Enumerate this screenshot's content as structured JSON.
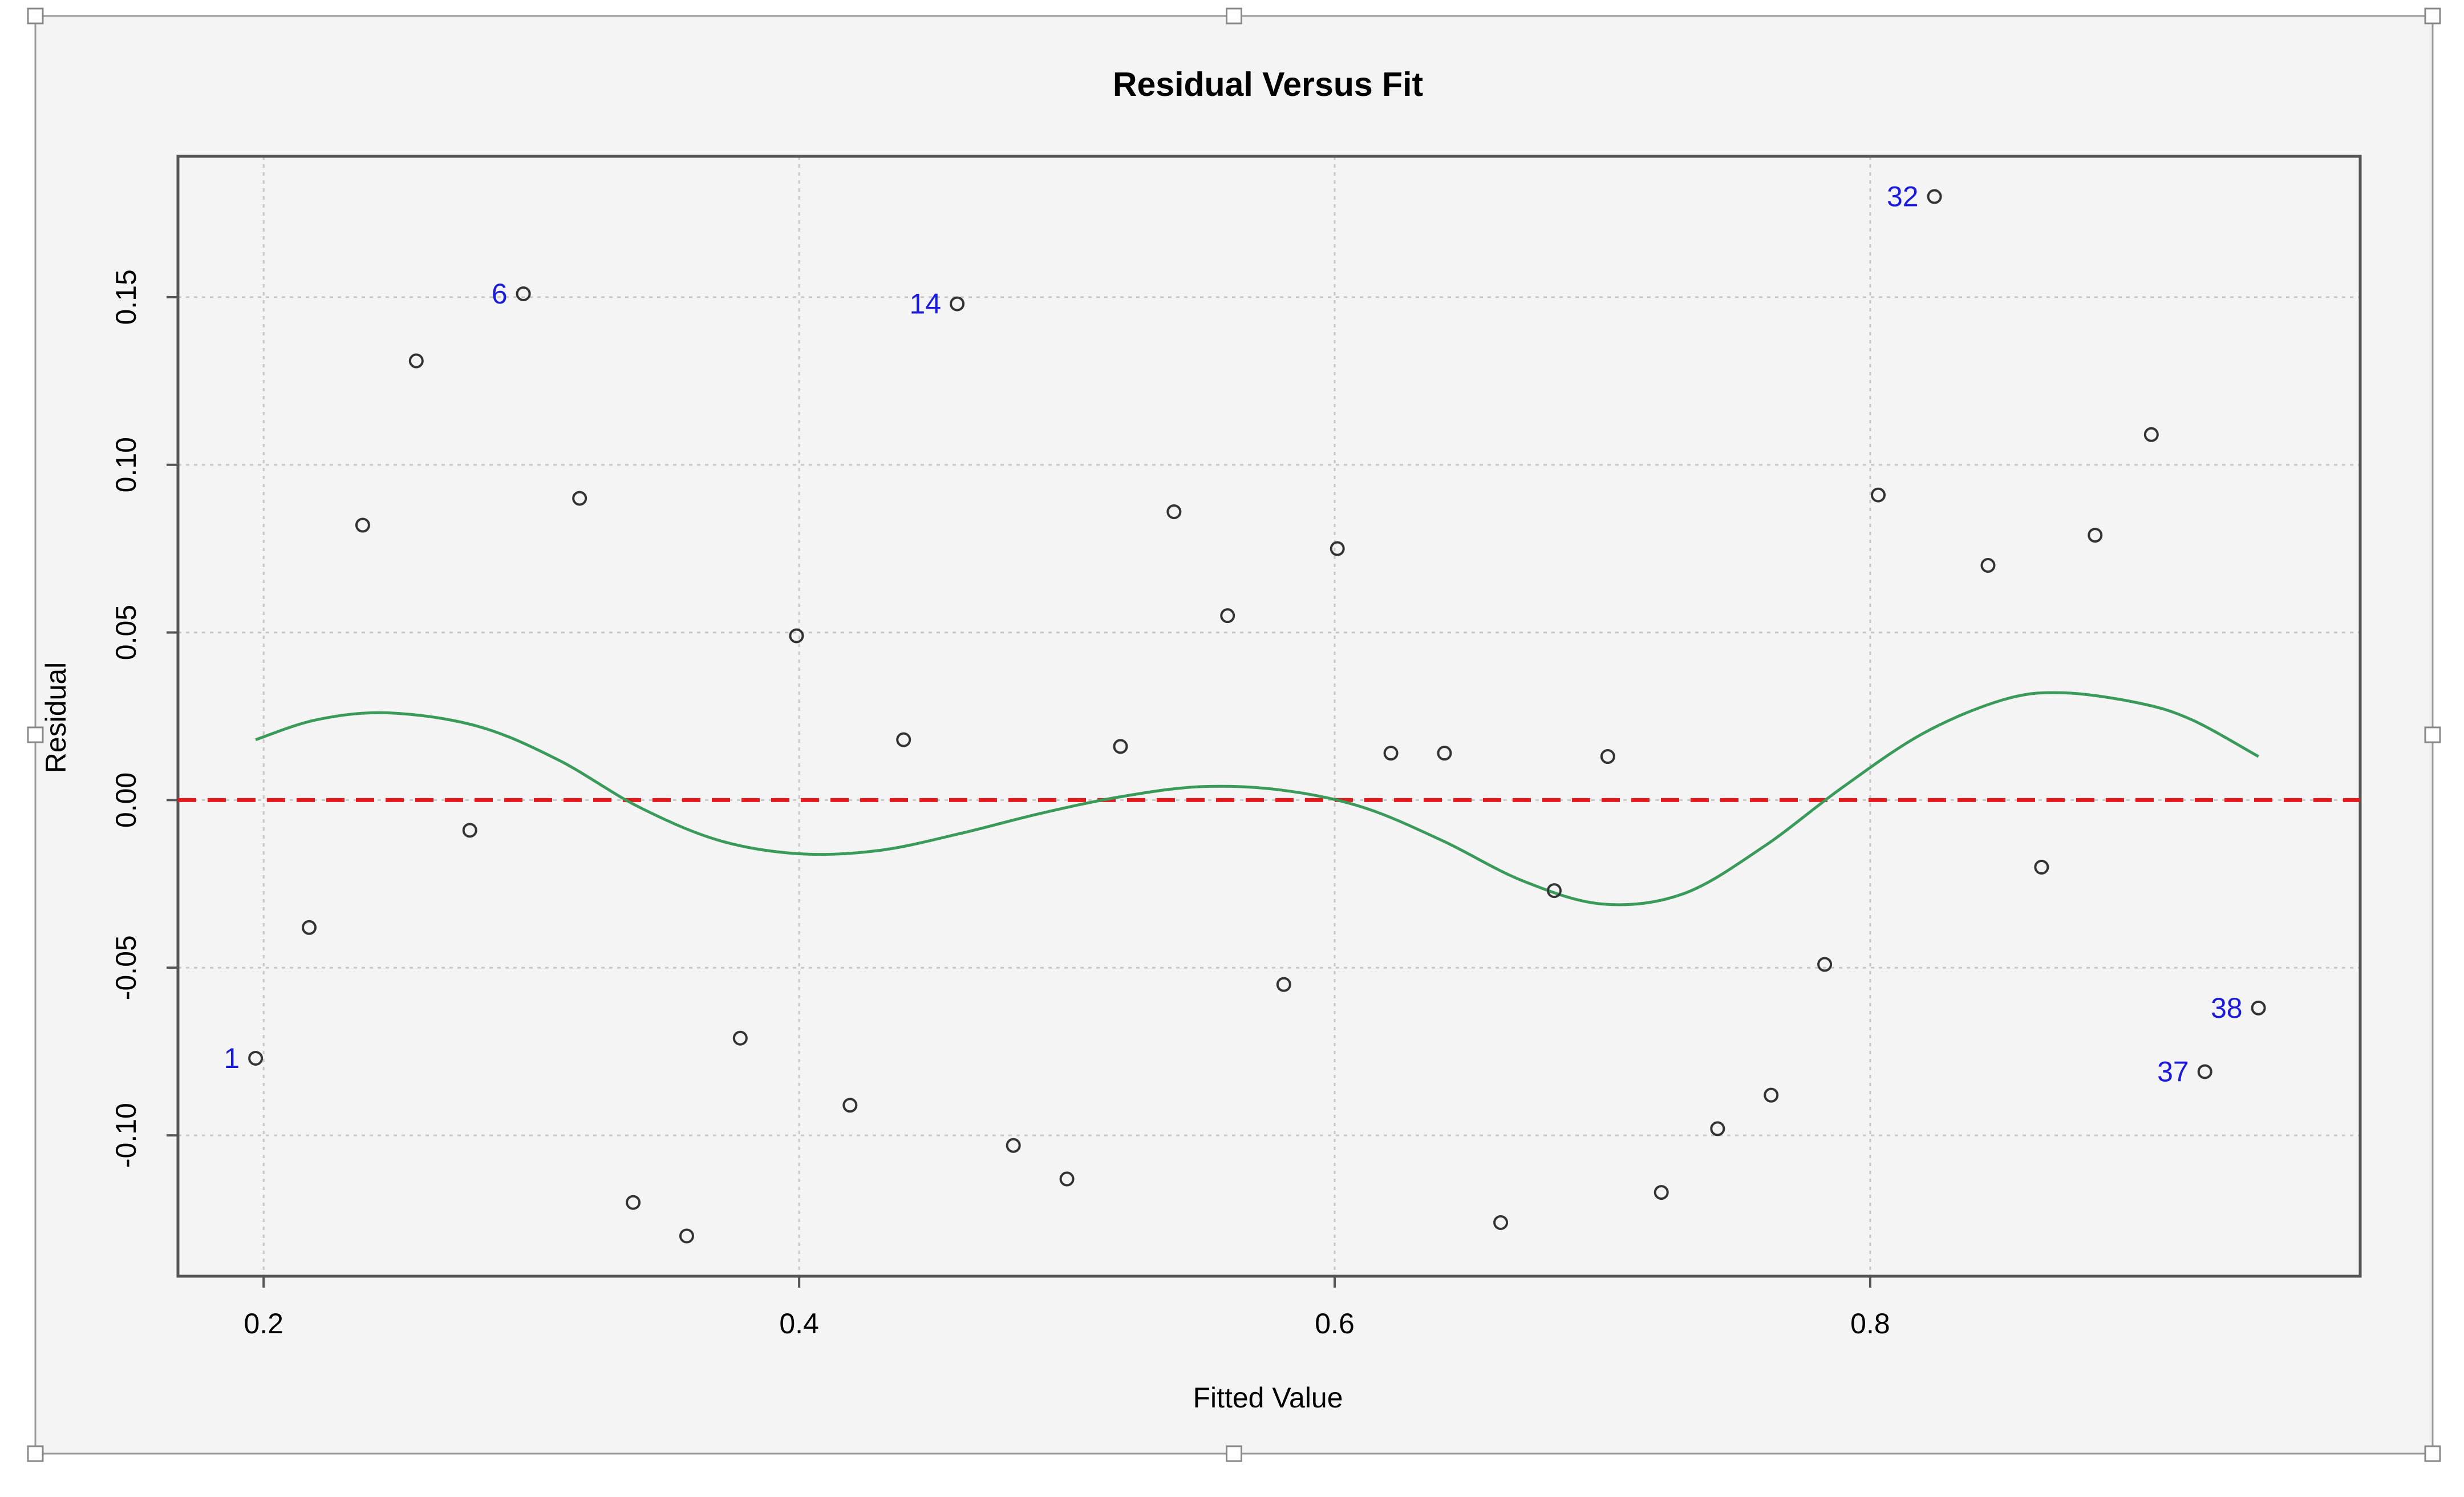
{
  "colors": {
    "panel_bg": "#f4f4f4",
    "frame": "#555555",
    "grid": "#c8c8c8",
    "points": "#333333",
    "smoother": "#3a9a5a",
    "reference_line": "#e41a1c",
    "point_labels": "#1a1adc",
    "handles": "#888888"
  },
  "chart_data": {
    "type": "scatter",
    "title": "Residual Versus Fit",
    "xlabel": "Fitted Value",
    "ylabel": "Residual",
    "xlim": [
      0.168,
      0.983
    ],
    "ylim": [
      -0.142,
      0.192
    ],
    "x_ticks": [
      0.2,
      0.4,
      0.6,
      0.8
    ],
    "x_tick_labels": [
      "0.2",
      "0.4",
      "0.6",
      "0.8"
    ],
    "y_ticks": [
      -0.1,
      -0.05,
      0.0,
      0.05,
      0.1,
      0.15
    ],
    "y_tick_labels": [
      "-0.10",
      "-0.05",
      "0.00",
      "0.05",
      "0.10",
      "0.15"
    ],
    "grid": true,
    "reference_line": {
      "y": 0,
      "style": "dashed",
      "color": "red"
    },
    "points": [
      {
        "x": 0.197,
        "y": -0.077,
        "label": "1"
      },
      {
        "x": 0.217,
        "y": -0.038
      },
      {
        "x": 0.237,
        "y": 0.082
      },
      {
        "x": 0.257,
        "y": 0.131
      },
      {
        "x": 0.277,
        "y": -0.009
      },
      {
        "x": 0.297,
        "y": 0.151,
        "label": "6"
      },
      {
        "x": 0.318,
        "y": 0.09
      },
      {
        "x": 0.338,
        "y": -0.12
      },
      {
        "x": 0.358,
        "y": -0.13
      },
      {
        "x": 0.378,
        "y": -0.071
      },
      {
        "x": 0.399,
        "y": 0.049
      },
      {
        "x": 0.419,
        "y": -0.091
      },
      {
        "x": 0.439,
        "y": 0.018
      },
      {
        "x": 0.459,
        "y": 0.148,
        "label": "14"
      },
      {
        "x": 0.48,
        "y": -0.103
      },
      {
        "x": 0.5,
        "y": -0.113
      },
      {
        "x": 0.52,
        "y": 0.016
      },
      {
        "x": 0.54,
        "y": 0.086
      },
      {
        "x": 0.56,
        "y": 0.055
      },
      {
        "x": 0.581,
        "y": -0.055
      },
      {
        "x": 0.601,
        "y": 0.075
      },
      {
        "x": 0.621,
        "y": 0.014
      },
      {
        "x": 0.641,
        "y": 0.014
      },
      {
        "x": 0.662,
        "y": -0.126
      },
      {
        "x": 0.682,
        "y": -0.027
      },
      {
        "x": 0.702,
        "y": 0.013
      },
      {
        "x": 0.722,
        "y": -0.117
      },
      {
        "x": 0.743,
        "y": -0.098
      },
      {
        "x": 0.763,
        "y": -0.088
      },
      {
        "x": 0.783,
        "y": -0.049
      },
      {
        "x": 0.803,
        "y": 0.091
      },
      {
        "x": 0.824,
        "y": 0.18,
        "label": "32"
      },
      {
        "x": 0.844,
        "y": 0.07
      },
      {
        "x": 0.864,
        "y": -0.02
      },
      {
        "x": 0.884,
        "y": 0.079
      },
      {
        "x": 0.905,
        "y": 0.109
      },
      {
        "x": 0.925,
        "y": -0.081,
        "label": "37"
      },
      {
        "x": 0.945,
        "y": -0.062,
        "label": "38"
      }
    ],
    "smoother": {
      "x": [
        0.197,
        0.22,
        0.247,
        0.28,
        0.31,
        0.34,
        0.37,
        0.4,
        0.43,
        0.46,
        0.49,
        0.52,
        0.55,
        0.58,
        0.61,
        0.64,
        0.67,
        0.7,
        0.73,
        0.76,
        0.79,
        0.82,
        0.85,
        0.872,
        0.9,
        0.92,
        0.945
      ],
      "y": [
        0.018,
        0.024,
        0.026,
        0.022,
        0.012,
        -0.002,
        -0.012,
        -0.016,
        -0.015,
        -0.01,
        -0.004,
        0.001,
        0.004,
        0.003,
        -0.002,
        -0.012,
        -0.024,
        -0.031,
        -0.028,
        -0.014,
        0.004,
        0.02,
        0.03,
        0.032,
        0.029,
        0.024,
        0.013
      ]
    }
  }
}
